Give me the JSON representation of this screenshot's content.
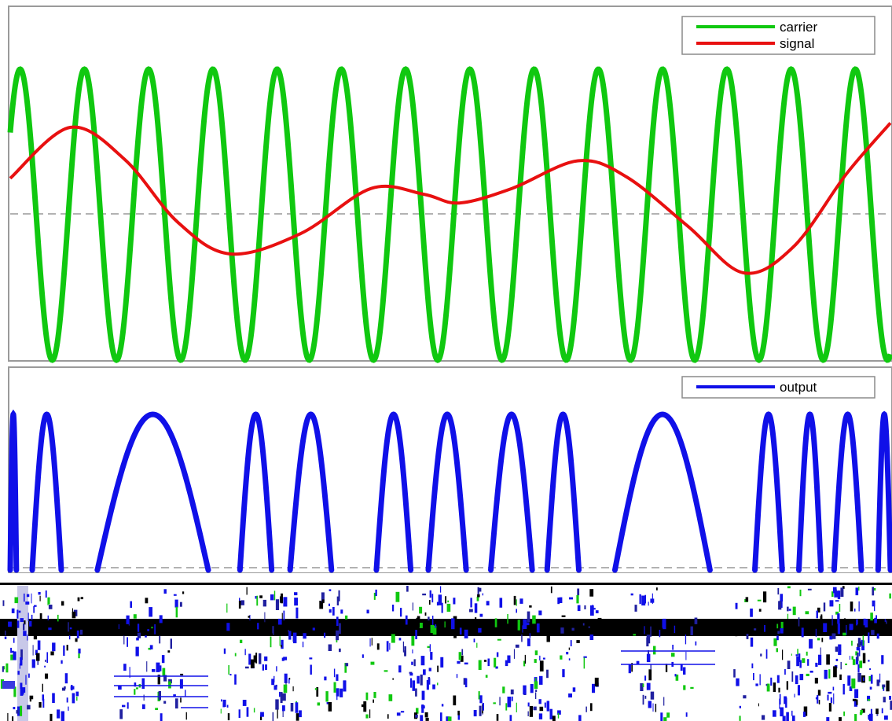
{
  "chart_data": [
    {
      "type": "line",
      "title": "",
      "xlabel": "",
      "ylabel": "",
      "x_range": [
        0,
        1
      ],
      "ylim": [
        -1,
        1
      ],
      "grid": false,
      "legend_position": "top-right",
      "baseline": 0,
      "series": [
        {
          "name": "carrier",
          "color": "#10c810",
          "kind": "sine",
          "cycles": 13.7,
          "phase_cycles": 0.0,
          "amplitude": 1.0
        },
        {
          "name": "signal",
          "color": "#e81010",
          "points": [
            [
              0.0,
              0.25
            ],
            [
              0.068,
              0.6
            ],
            [
              0.13,
              0.38
            ],
            [
              0.19,
              -0.05
            ],
            [
              0.25,
              -0.27
            ],
            [
              0.33,
              -0.13
            ],
            [
              0.41,
              0.18
            ],
            [
              0.47,
              0.14
            ],
            [
              0.51,
              0.08
            ],
            [
              0.57,
              0.18
            ],
            [
              0.645,
              0.37
            ],
            [
              0.7,
              0.26
            ],
            [
              0.77,
              -0.08
            ],
            [
              0.833,
              -0.4
            ],
            [
              0.89,
              -0.22
            ],
            [
              0.95,
              0.28
            ],
            [
              1.0,
              0.63
            ]
          ]
        }
      ]
    },
    {
      "type": "line",
      "title": "",
      "xlabel": "",
      "ylabel": "",
      "x_range": [
        0,
        1
      ],
      "ylim": [
        0,
        1
      ],
      "grid": false,
      "legend_position": "top-right",
      "baseline": 0,
      "series": [
        {
          "name": "output",
          "color": "#1010e8",
          "arches": [
            [
              0.0,
              0.007
            ],
            [
              0.025,
              0.058
            ],
            [
              0.099,
              0.225
            ],
            [
              0.261,
              0.297
            ],
            [
              0.318,
              0.365
            ],
            [
              0.416,
              0.455
            ],
            [
              0.475,
              0.518
            ],
            [
              0.546,
              0.593
            ],
            [
              0.61,
              0.646
            ],
            [
              0.687,
              0.795
            ],
            [
              0.846,
              0.877
            ],
            [
              0.896,
              0.921
            ],
            [
              0.936,
              0.967
            ],
            [
              0.986,
              1.0
            ]
          ]
        }
      ]
    }
  ]
}
